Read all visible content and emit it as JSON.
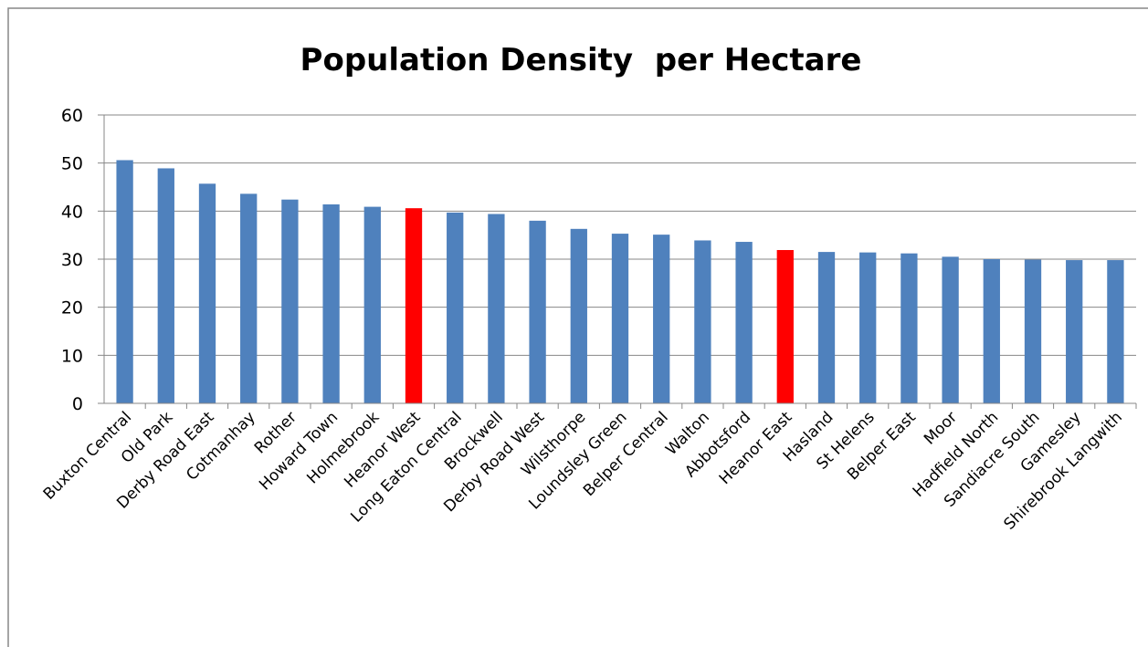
{
  "chart_data": {
    "type": "bar",
    "title": "Population Density  per Hectare",
    "xlabel": "",
    "ylabel": "",
    "ylim": [
      0,
      60
    ],
    "yticks": [
      0,
      10,
      20,
      30,
      40,
      50,
      60
    ],
    "grid": true,
    "legend": "none",
    "categories": [
      "Buxton Central",
      "Old Park",
      "Derby Road East",
      "Cotmanhay",
      "Rother",
      "Howard Town",
      "Holmebrook",
      "Heanor West",
      "Long Eaton Central",
      "Brockwell",
      "Derby Road West",
      "Wilsthorpe",
      "Loundsley Green",
      "Belper Central",
      "Walton",
      "Abbotsford",
      "Heanor East",
      "Hasland",
      "St Helens",
      "Belper East",
      "Moor",
      "Hadfield North",
      "Sandiacre South",
      "Gamesley",
      "Shirebrook Langwith"
    ],
    "values": [
      50.6,
      48.9,
      45.7,
      43.6,
      42.4,
      41.4,
      40.9,
      40.6,
      39.7,
      39.4,
      38.0,
      36.3,
      35.3,
      35.1,
      33.9,
      33.6,
      31.9,
      31.5,
      31.4,
      31.2,
      30.5,
      30.0,
      29.9,
      29.8,
      29.8
    ],
    "highlighted": [
      "Heanor West",
      "Heanor East"
    ],
    "colors": {
      "bar": "#4F81BD",
      "highlight": "#FF0000",
      "grid": "#878787",
      "axis": "#878787",
      "frame": "#878787"
    }
  }
}
